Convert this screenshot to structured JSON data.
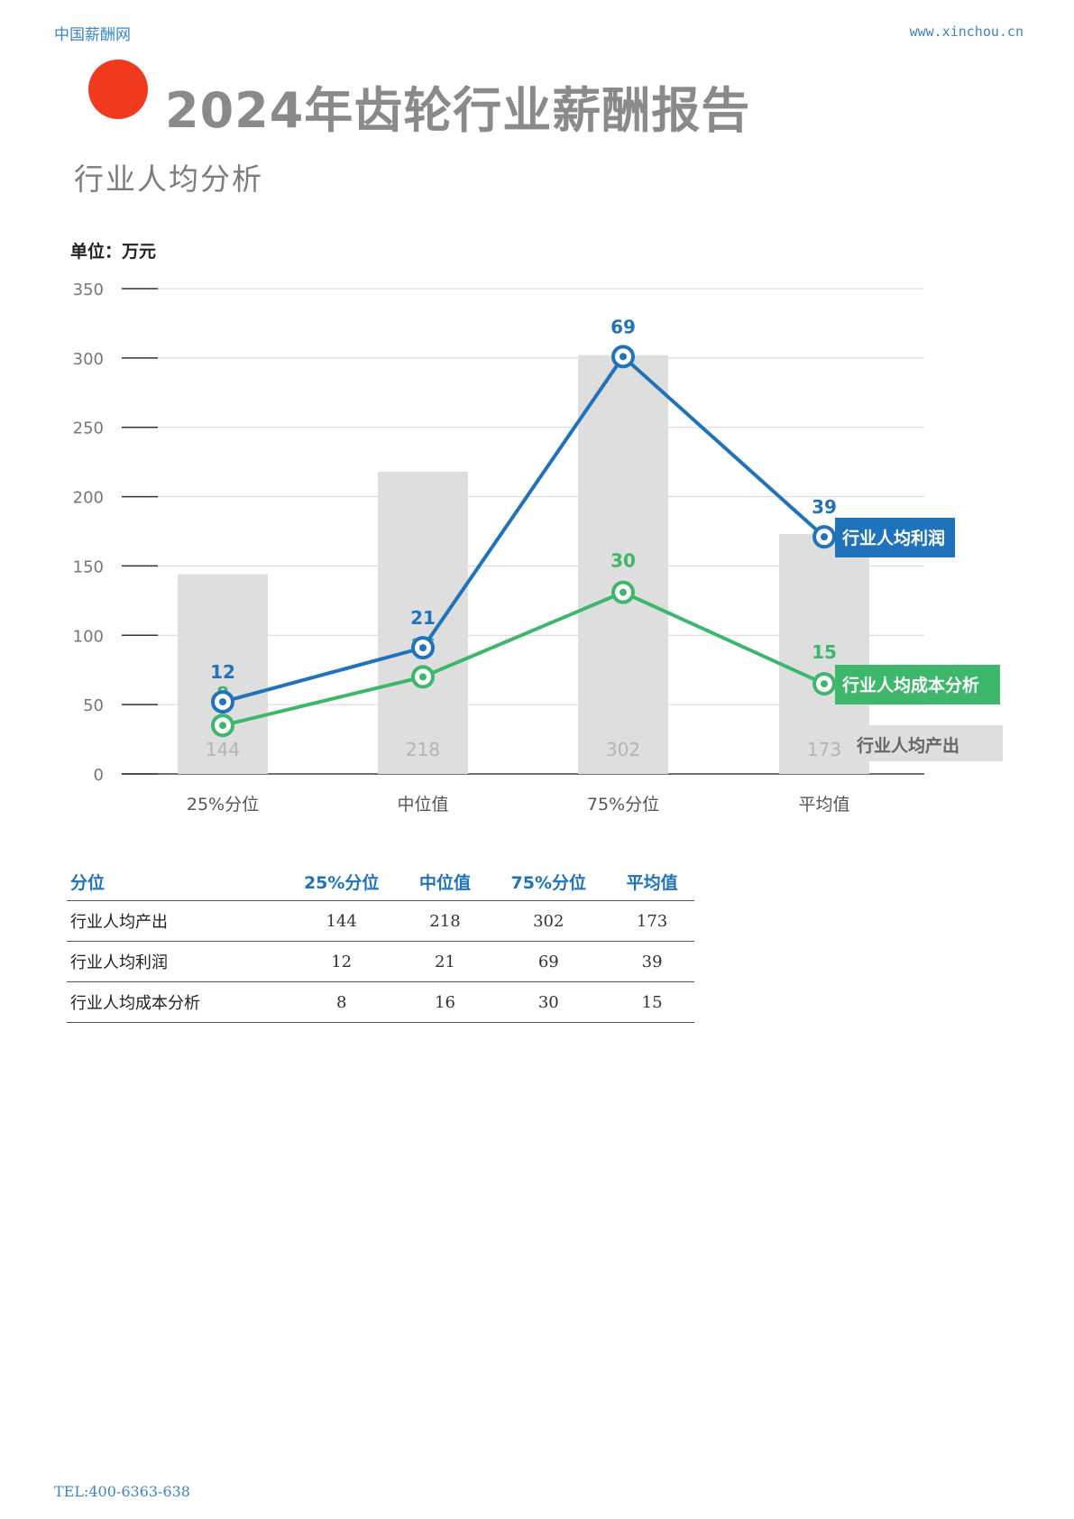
{
  "header": {
    "site_name": "中国薪酬网",
    "url": "www.xinchou.cn"
  },
  "page": {
    "title": "2024年齿轮行业薪酬报告",
    "subtitle": "行业人均分析",
    "unit_label": "单位：万元"
  },
  "colors": {
    "accent_dot": "#ef3a1d",
    "profit": "#1f73bd",
    "cost": "#3db86b",
    "bar": "#dedede"
  },
  "chart_data": {
    "type": "bar",
    "categories": [
      "25%分位",
      "中位值",
      "75%分位",
      "平均值"
    ],
    "ylim": [
      0,
      350
    ],
    "yticks": [
      0,
      50,
      100,
      150,
      200,
      250,
      300,
      350
    ],
    "grid": true,
    "series": [
      {
        "name": "行业人均产出",
        "type": "bar",
        "values": [
          144,
          218,
          302,
          173
        ]
      },
      {
        "name": "行业人均利润",
        "type": "line",
        "values": [
          12,
          21,
          69,
          39
        ],
        "plot_y": [
          52,
          91,
          301,
          171
        ]
      },
      {
        "name": "行业人均成本分析",
        "type": "line",
        "values": [
          8,
          16,
          30,
          15
        ],
        "plot_y": [
          35,
          70,
          131,
          65
        ]
      }
    ]
  },
  "table": {
    "headers": [
      "分位",
      "25%分位",
      "中位值",
      "75%分位",
      "平均值"
    ],
    "rows": [
      [
        "行业人均产出",
        "144",
        "218",
        "302",
        "173"
      ],
      [
        "行业人均利润",
        "12",
        "21",
        "69",
        "39"
      ],
      [
        "行业人均成本分析",
        "8",
        "16",
        "30",
        "15"
      ]
    ]
  },
  "footer": {
    "tel": "TEL:400-6363-638"
  }
}
